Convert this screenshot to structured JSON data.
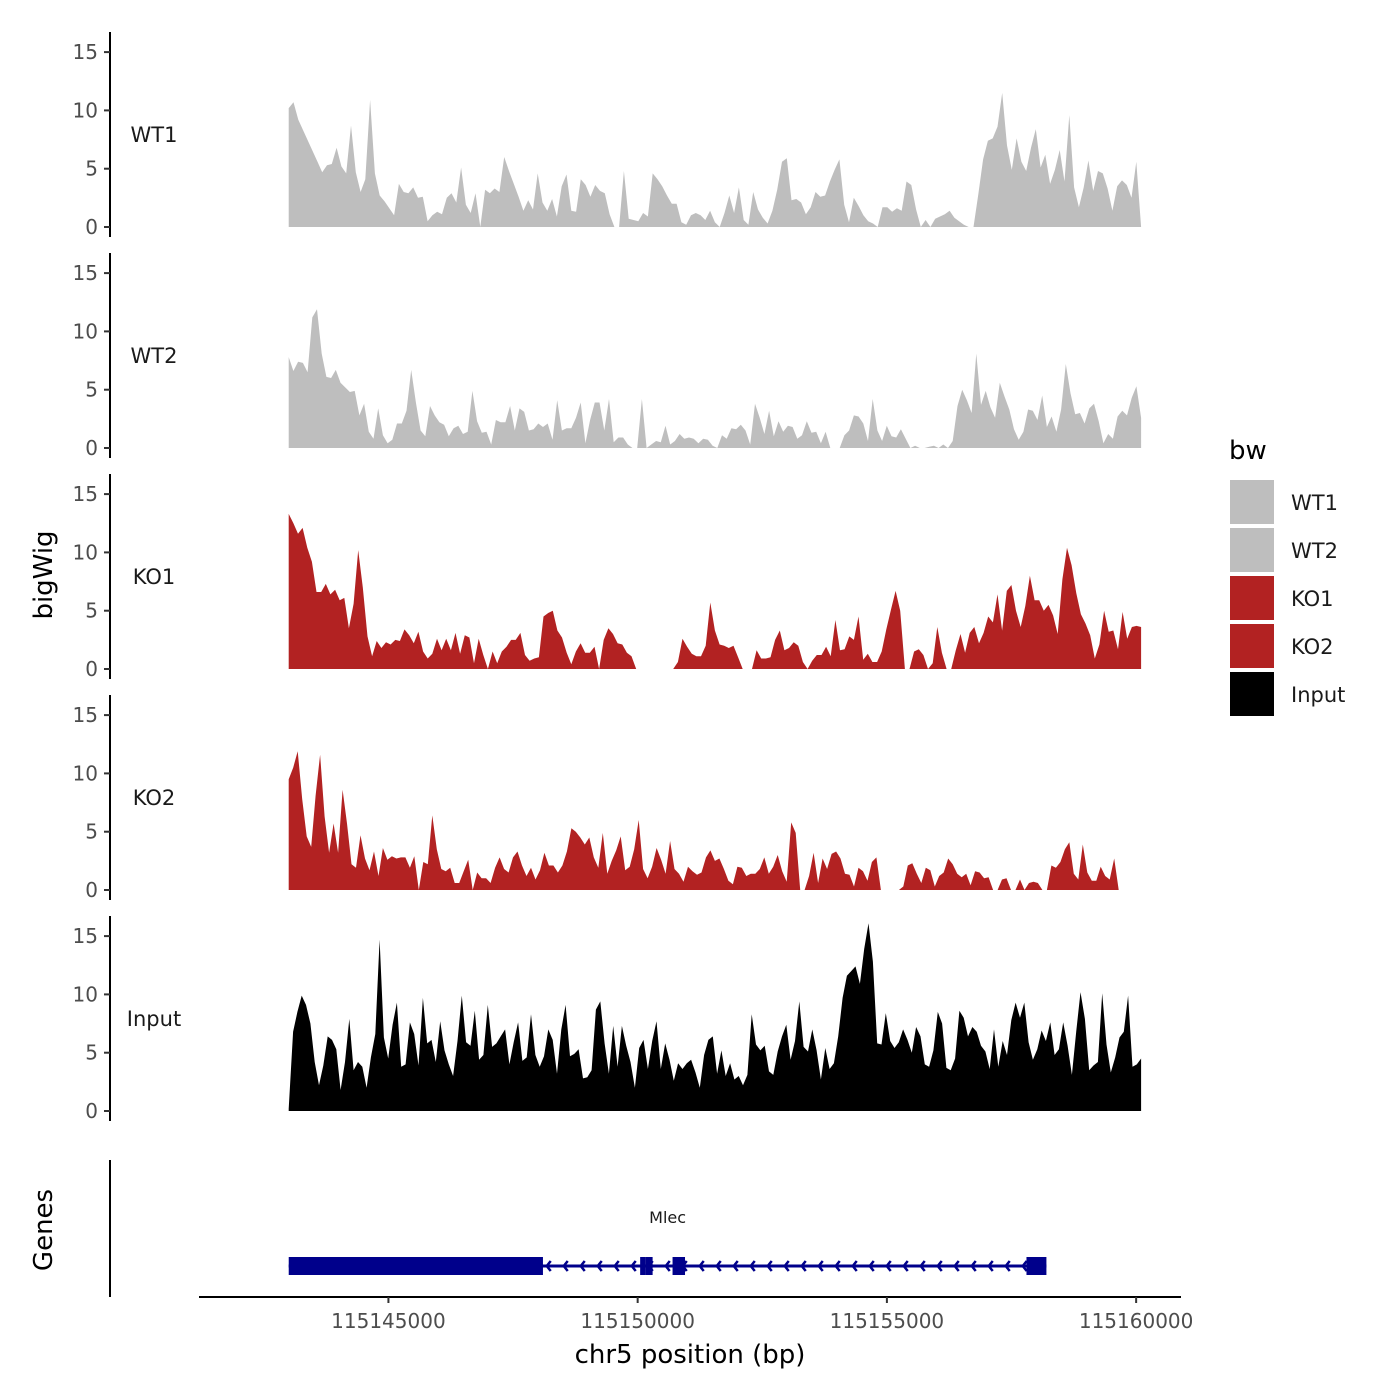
{
  "chart_data": {
    "type": "area",
    "ylabel": "bigWig",
    "xlabel": "chr5 position (bp)",
    "ylim": [
      0,
      16
    ],
    "y_ticks": [
      0,
      5,
      10,
      15
    ],
    "xlim": [
      115141200,
      115160900
    ],
    "x_ticks": [
      {
        "value": 115145000,
        "label": "115145000"
      },
      {
        "value": 115150000,
        "label": "115150000"
      },
      {
        "value": 115155000,
        "label": "115155000"
      },
      {
        "value": 115160000,
        "label": "115160000"
      }
    ],
    "data_range": [
      115143000,
      115160100
    ],
    "series": [
      {
        "name": "WT1",
        "color": "#bebebe",
        "values": [
          10.2,
          10.7,
          9.2,
          8.3,
          7.4,
          6.5,
          5.6,
          4.7,
          5.3,
          5.4,
          6.8,
          5.2,
          4.6,
          8.7,
          4.7,
          3.0,
          4.1,
          10.9,
          4.6,
          2.7,
          2.2,
          1.6,
          1.0,
          3.7,
          3.0,
          2.9,
          3.4,
          2.5,
          2.6,
          0.5,
          1.0,
          1.3,
          1.1,
          2.5,
          2.9,
          2.1,
          5.1,
          1.9,
          1.2,
          2.9,
          0.0,
          3.2,
          2.9,
          3.3,
          3.0,
          6.0,
          4.8,
          3.7,
          2.6,
          1.4,
          2.3,
          1.5,
          4.6,
          2.1,
          1.4,
          2.4,
          0.9,
          3.5,
          4.5,
          1.4,
          1.3,
          4.1,
          3.6,
          2.6,
          3.6,
          3.1,
          2.9,
          1.1,
          0.0,
          0.0,
          4.8,
          0.7,
          0.6,
          0.5,
          1.2,
          0.9,
          4.6,
          4.1,
          3.5,
          2.7,
          2.0,
          2.0,
          0.4,
          0.2,
          1.0,
          1.2,
          1.0,
          0.6,
          1.4,
          0.4,
          0.0,
          1.2,
          2.7,
          1.2,
          3.4,
          0.6,
          0.2,
          3.0,
          1.5,
          0.8,
          0.3,
          1.4,
          3.2,
          5.6,
          5.9,
          2.3,
          2.4,
          2.1,
          1.1,
          1.7,
          3.0,
          2.6,
          2.7,
          3.9,
          4.9,
          5.8,
          1.9,
          0.4,
          2.5,
          1.8,
          1.0,
          0.5,
          0.3,
          0.0,
          1.7,
          1.7,
          1.3,
          1.6,
          1.4,
          3.9,
          3.6,
          1.5,
          0.0,
          0.6,
          0.0,
          0.7,
          0.9,
          1.1,
          1.4,
          0.8,
          0.5,
          0.2,
          0.0,
          0.0,
          2.8,
          5.8,
          7.4,
          7.6,
          8.6,
          11.5,
          7.0,
          4.9,
          7.6,
          5.6,
          4.8,
          6.8,
          8.4,
          5.1,
          6.2,
          3.7,
          4.9,
          6.6,
          3.9,
          9.6,
          3.4,
          1.7,
          3.4,
          5.7,
          3.1,
          4.8,
          4.6,
          3.3,
          1.4,
          3.5,
          4.0,
          3.6,
          2.5,
          5.6,
          0.0
        ]
      },
      {
        "name": "WT2",
        "color": "#bebebe",
        "values": [
          7.8,
          6.6,
          7.4,
          7.3,
          6.5,
          11.2,
          11.9,
          8.1,
          6.1,
          6.0,
          6.7,
          5.6,
          5.2,
          4.8,
          4.9,
          2.8,
          3.8,
          1.4,
          0.8,
          3.4,
          1.1,
          0.4,
          0.7,
          2.1,
          2.1,
          3.2,
          6.7,
          3.9,
          1.5,
          1.0,
          3.6,
          2.8,
          2.2,
          2.0,
          1.0,
          1.7,
          1.9,
          1.2,
          1.4,
          4.9,
          2.3,
          1.3,
          1.4,
          0.3,
          2.4,
          2.2,
          2.2,
          3.6,
          1.5,
          3.4,
          3.1,
          1.5,
          1.6,
          2.1,
          1.8,
          2.1,
          0.7,
          4.1,
          1.5,
          1.7,
          1.7,
          2.6,
          3.9,
          0.4,
          2.4,
          3.9,
          3.9,
          1.5,
          4.2,
          0.5,
          0.9,
          0.9,
          0.3,
          0.0,
          0.0,
          4.2,
          0.0,
          0.3,
          0.6,
          0.5,
          1.9,
          0.3,
          0.6,
          1.2,
          0.8,
          0.9,
          0.8,
          0.4,
          0.8,
          0.7,
          0.2,
          0.0,
          1.1,
          0.8,
          1.7,
          1.6,
          2.0,
          1.5,
          0.3,
          3.8,
          2.6,
          1.2,
          3.2,
          1.0,
          2.3,
          1.4,
          1.9,
          1.8,
          0.8,
          1.1,
          2.3,
          1.3,
          1.4,
          0.4,
          1.4,
          0.0,
          0.0,
          0.0,
          1.1,
          1.5,
          2.8,
          2.7,
          2.1,
          0.6,
          4.2,
          1.5,
          0.6,
          1.9,
          1.0,
          0.9,
          1.6,
          0.8,
          0.0,
          0.2,
          0.0,
          0.0,
          0.1,
          0.2,
          0.0,
          0.3,
          0.0,
          0.6,
          3.6,
          5.0,
          4.1,
          3.0,
          8.1,
          3.7,
          4.9,
          3.5,
          2.6,
          5.6,
          4.4,
          3.3,
          1.6,
          0.7,
          1.4,
          3.3,
          3.2,
          2.4,
          4.5,
          1.8,
          2.7,
          1.4,
          3.3,
          7.2,
          4.7,
          2.9,
          3.0,
          2.1,
          3.4,
          3.8,
          2.3,
          0.4,
          1.2,
          0.8,
          2.7,
          3.2,
          2.8,
          4.3,
          5.3,
          2.6
        ]
      },
      {
        "name": "KO1",
        "color": "#b22222",
        "values": [
          13.3,
          12.5,
          11.6,
          12.1,
          10.4,
          9.2,
          6.6,
          6.6,
          7.3,
          6.4,
          6.8,
          5.9,
          6.1,
          3.5,
          5.6,
          10.2,
          7.0,
          2.8,
          1.1,
          2.4,
          1.8,
          2.3,
          2.1,
          2.5,
          2.4,
          3.4,
          2.9,
          2.2,
          3.2,
          1.5,
          0.9,
          1.3,
          2.6,
          1.6,
          2.6,
          1.6,
          3.1,
          1.3,
          2.9,
          2.7,
          0.5,
          2.6,
          1.2,
          0.0,
          1.5,
          0.5,
          1.5,
          1.9,
          2.5,
          2.5,
          3.1,
          1.2,
          0.7,
          0.9,
          1.0,
          4.5,
          4.8,
          5.0,
          3.3,
          2.7,
          1.4,
          0.4,
          1.5,
          2.2,
          1.4,
          1.4,
          1.9,
          0.0,
          2.5,
          3.5,
          3.0,
          2.2,
          2.1,
          1.4,
          1.1,
          0.0,
          0.0,
          0.0,
          0.0,
          0.0,
          0.0,
          0.0,
          0.0,
          0.0,
          0.6,
          2.6,
          1.9,
          1.3,
          1.1,
          1.1,
          2.0,
          5.7,
          3.3,
          2.1,
          2.0,
          1.8,
          2.0,
          1.0,
          0.0,
          0.0,
          0.0,
          1.6,
          0.9,
          0.9,
          1.0,
          2.5,
          3.3,
          1.6,
          1.8,
          2.3,
          2.0,
          0.6,
          0.0,
          0.7,
          1.2,
          1.2,
          1.9,
          1.1,
          4.2,
          1.6,
          1.7,
          2.8,
          2.5,
          4.5,
          0.8,
          1.3,
          0.6,
          0.6,
          1.5,
          3.4,
          5.1,
          6.7,
          5.0,
          0.0,
          0.0,
          1.5,
          1.7,
          1.2,
          0.0,
          0.5,
          3.6,
          1.4,
          0.0,
          0.0,
          1.6,
          3.0,
          1.4,
          3.1,
          3.6,
          2.2,
          3.1,
          4.5,
          4.0,
          6.4,
          3.3,
          6.7,
          7.2,
          5.0,
          3.6,
          5.4,
          8.0,
          5.9,
          5.9,
          5.0,
          5.5,
          4.6,
          3.0,
          7.7,
          10.4,
          8.9,
          6.5,
          4.7,
          3.9,
          2.9,
          0.9,
          2.1,
          5.0,
          3.2,
          3.3,
          1.7,
          4.9,
          2.6,
          3.6,
          3.7,
          3.6
        ]
      },
      {
        "name": "KO2",
        "color": "#b22222",
        "values": [
          9.5,
          10.5,
          11.9,
          7.8,
          4.6,
          3.7,
          8.1,
          11.6,
          6.3,
          3.2,
          5.7,
          3.2,
          8.6,
          5.7,
          2.2,
          1.9,
          4.7,
          2.7,
          1.7,
          3.3,
          1.2,
          3.6,
          2.6,
          2.9,
          2.7,
          2.8,
          2.8,
          1.9,
          2.9,
          0.0,
          2.4,
          2.2,
          6.4,
          3.5,
          1.8,
          1.6,
          1.9,
          0.6,
          0.6,
          1.6,
          2.6,
          0.0,
          1.5,
          1.0,
          1.0,
          0.6,
          1.9,
          2.8,
          1.8,
          1.5,
          2.8,
          3.3,
          2.1,
          1.2,
          1.9,
          0.9,
          1.7,
          3.2,
          2.1,
          2.1,
          1.5,
          2.1,
          3.3,
          5.3,
          5.0,
          4.5,
          3.9,
          4.5,
          2.8,
          1.9,
          4.9,
          1.4,
          2.5,
          3.4,
          4.6,
          1.7,
          2.0,
          3.5,
          6.0,
          1.8,
          1.0,
          2.0,
          3.6,
          2.6,
          1.4,
          4.2,
          1.8,
          1.4,
          0.7,
          2.0,
          1.6,
          1.3,
          1.5,
          2.8,
          3.4,
          2.5,
          2.7,
          1.8,
          0.8,
          0.5,
          2.0,
          1.9,
          1.2,
          1.4,
          1.4,
          1.8,
          2.8,
          1.4,
          2.0,
          3.0,
          1.6,
          0.7,
          5.8,
          4.9,
          0.0,
          0.0,
          1.2,
          3.2,
          0.6,
          2.7,
          1.8,
          3.1,
          3.3,
          2.7,
          1.4,
          1.3,
          0.3,
          1.9,
          1.6,
          0.8,
          2.4,
          2.8,
          0.0,
          0.0,
          0.0,
          0.0,
          0.0,
          0.3,
          2.1,
          2.3,
          1.4,
          0.6,
          1.9,
          1.7,
          0.3,
          1.2,
          1.5,
          2.7,
          2.2,
          1.4,
          1.1,
          1.4,
          0.4,
          1.6,
          1.5,
          1.0,
          1.1,
          0.0,
          0.0,
          0.9,
          1.0,
          0.0,
          0.0,
          0.9,
          0.0,
          0.6,
          0.7,
          0.6,
          0.0,
          0.0,
          2.1,
          1.9,
          2.4,
          3.5,
          4.1,
          1.4,
          0.9,
          3.9,
          1.5,
          0.8,
          0.8,
          2.0,
          1.2,
          0.9,
          2.7,
          0.0,
          0.0,
          0.0,
          0.0,
          0.0,
          0.0
        ]
      },
      {
        "name": "Input",
        "color": "#000000",
        "values": [
          0.2,
          6.8,
          8.5,
          9.9,
          9.1,
          7.5,
          4.2,
          2.2,
          3.9,
          6.4,
          6.1,
          5.3,
          1.8,
          4.2,
          7.9,
          3.5,
          4.2,
          3.8,
          2.0,
          4.6,
          6.6,
          14.7,
          6.3,
          4.5,
          7.4,
          9.3,
          3.8,
          4.0,
          7.6,
          6.6,
          3.9,
          9.7,
          5.8,
          6.1,
          4.2,
          7.7,
          5.2,
          4.0,
          3.0,
          6.0,
          9.9,
          5.9,
          5.6,
          8.6,
          4.4,
          4.8,
          9.1,
          5.5,
          5.8,
          6.4,
          7.0,
          4.0,
          5.9,
          7.6,
          4.3,
          4.6,
          8.3,
          4.8,
          3.8,
          4.7,
          7.0,
          6.1,
          3.2,
          7.0,
          9.1,
          4.7,
          4.9,
          5.3,
          2.8,
          2.9,
          3.5,
          8.7,
          9.4,
          5.8,
          3.2,
          7.3,
          3.8,
          7.3,
          5.6,
          4.2,
          2.0,
          5.4,
          6.1,
          3.6,
          6.0,
          7.7,
          3.6,
          5.8,
          4.4,
          2.6,
          4.1,
          3.6,
          4.1,
          4.4,
          3.3,
          2.0,
          4.8,
          6.1,
          6.4,
          3.2,
          5.2,
          3.0,
          4.1,
          2.7,
          3.0,
          2.2,
          3.1,
          8.3,
          5.7,
          5.2,
          5.6,
          3.4,
          3.1,
          5.1,
          6.4,
          7.4,
          4.4,
          6.0,
          9.4,
          5.5,
          5.1,
          7.0,
          5.2,
          2.7,
          5.4,
          3.6,
          4.1,
          6.4,
          9.7,
          11.6,
          12.0,
          12.4,
          10.9,
          13.9,
          16.1,
          12.8,
          5.8,
          5.7,
          8.4,
          6.0,
          5.4,
          5.9,
          7.0,
          6.1,
          5.0,
          7.2,
          6.4,
          4.0,
          3.8,
          5.2,
          8.5,
          7.5,
          3.7,
          3.5,
          4.5,
          8.6,
          8.0,
          6.4,
          7.2,
          6.8,
          5.6,
          5.1,
          3.6,
          7.0,
          3.8,
          6.0,
          4.8,
          7.8,
          9.3,
          8.0,
          9.3,
          5.9,
          4.4,
          5.3,
          6.9,
          6.0,
          7.6,
          4.8,
          5.3,
          7.6,
          5.6,
          3.1,
          6.8,
          10.2,
          7.9,
          3.5,
          3.9,
          4.2,
          10.1,
          5.7,
          3.3,
          4.6,
          6.3,
          6.8,
          9.9,
          3.8,
          4.0,
          4.5
        ]
      }
    ],
    "tracks": [
      {
        "label": "WT1",
        "color": "#bebebe"
      },
      {
        "label": "WT2",
        "color": "#bebebe"
      },
      {
        "label": "KO1",
        "color": "#b22222"
      },
      {
        "label": "KO2",
        "color": "#b22222"
      },
      {
        "label": "Input",
        "color": "#000000"
      }
    ],
    "legend": {
      "title": "bw",
      "position": "right",
      "items": [
        {
          "label": "WT1",
          "color": "#bebebe"
        },
        {
          "label": "WT2",
          "color": "#bebebe"
        },
        {
          "label": "KO1",
          "color": "#b22222"
        },
        {
          "label": "KO2",
          "color": "#b22222"
        },
        {
          "label": "Input",
          "color": "#000000"
        }
      ]
    },
    "genes_track": {
      "ylabel": "Genes",
      "gene_name": "Mlec",
      "strand": "-",
      "color": "#00008b",
      "start": 115143000,
      "end": 115158200,
      "blocks": [
        {
          "start": 115143000,
          "end": 115148100
        },
        {
          "start": 115150050,
          "end": 115150150
        },
        {
          "start": 115150150,
          "end": 115150300
        },
        {
          "start": 115150700,
          "end": 115150950
        },
        {
          "start": 115157800,
          "end": 115158200
        }
      ]
    }
  }
}
